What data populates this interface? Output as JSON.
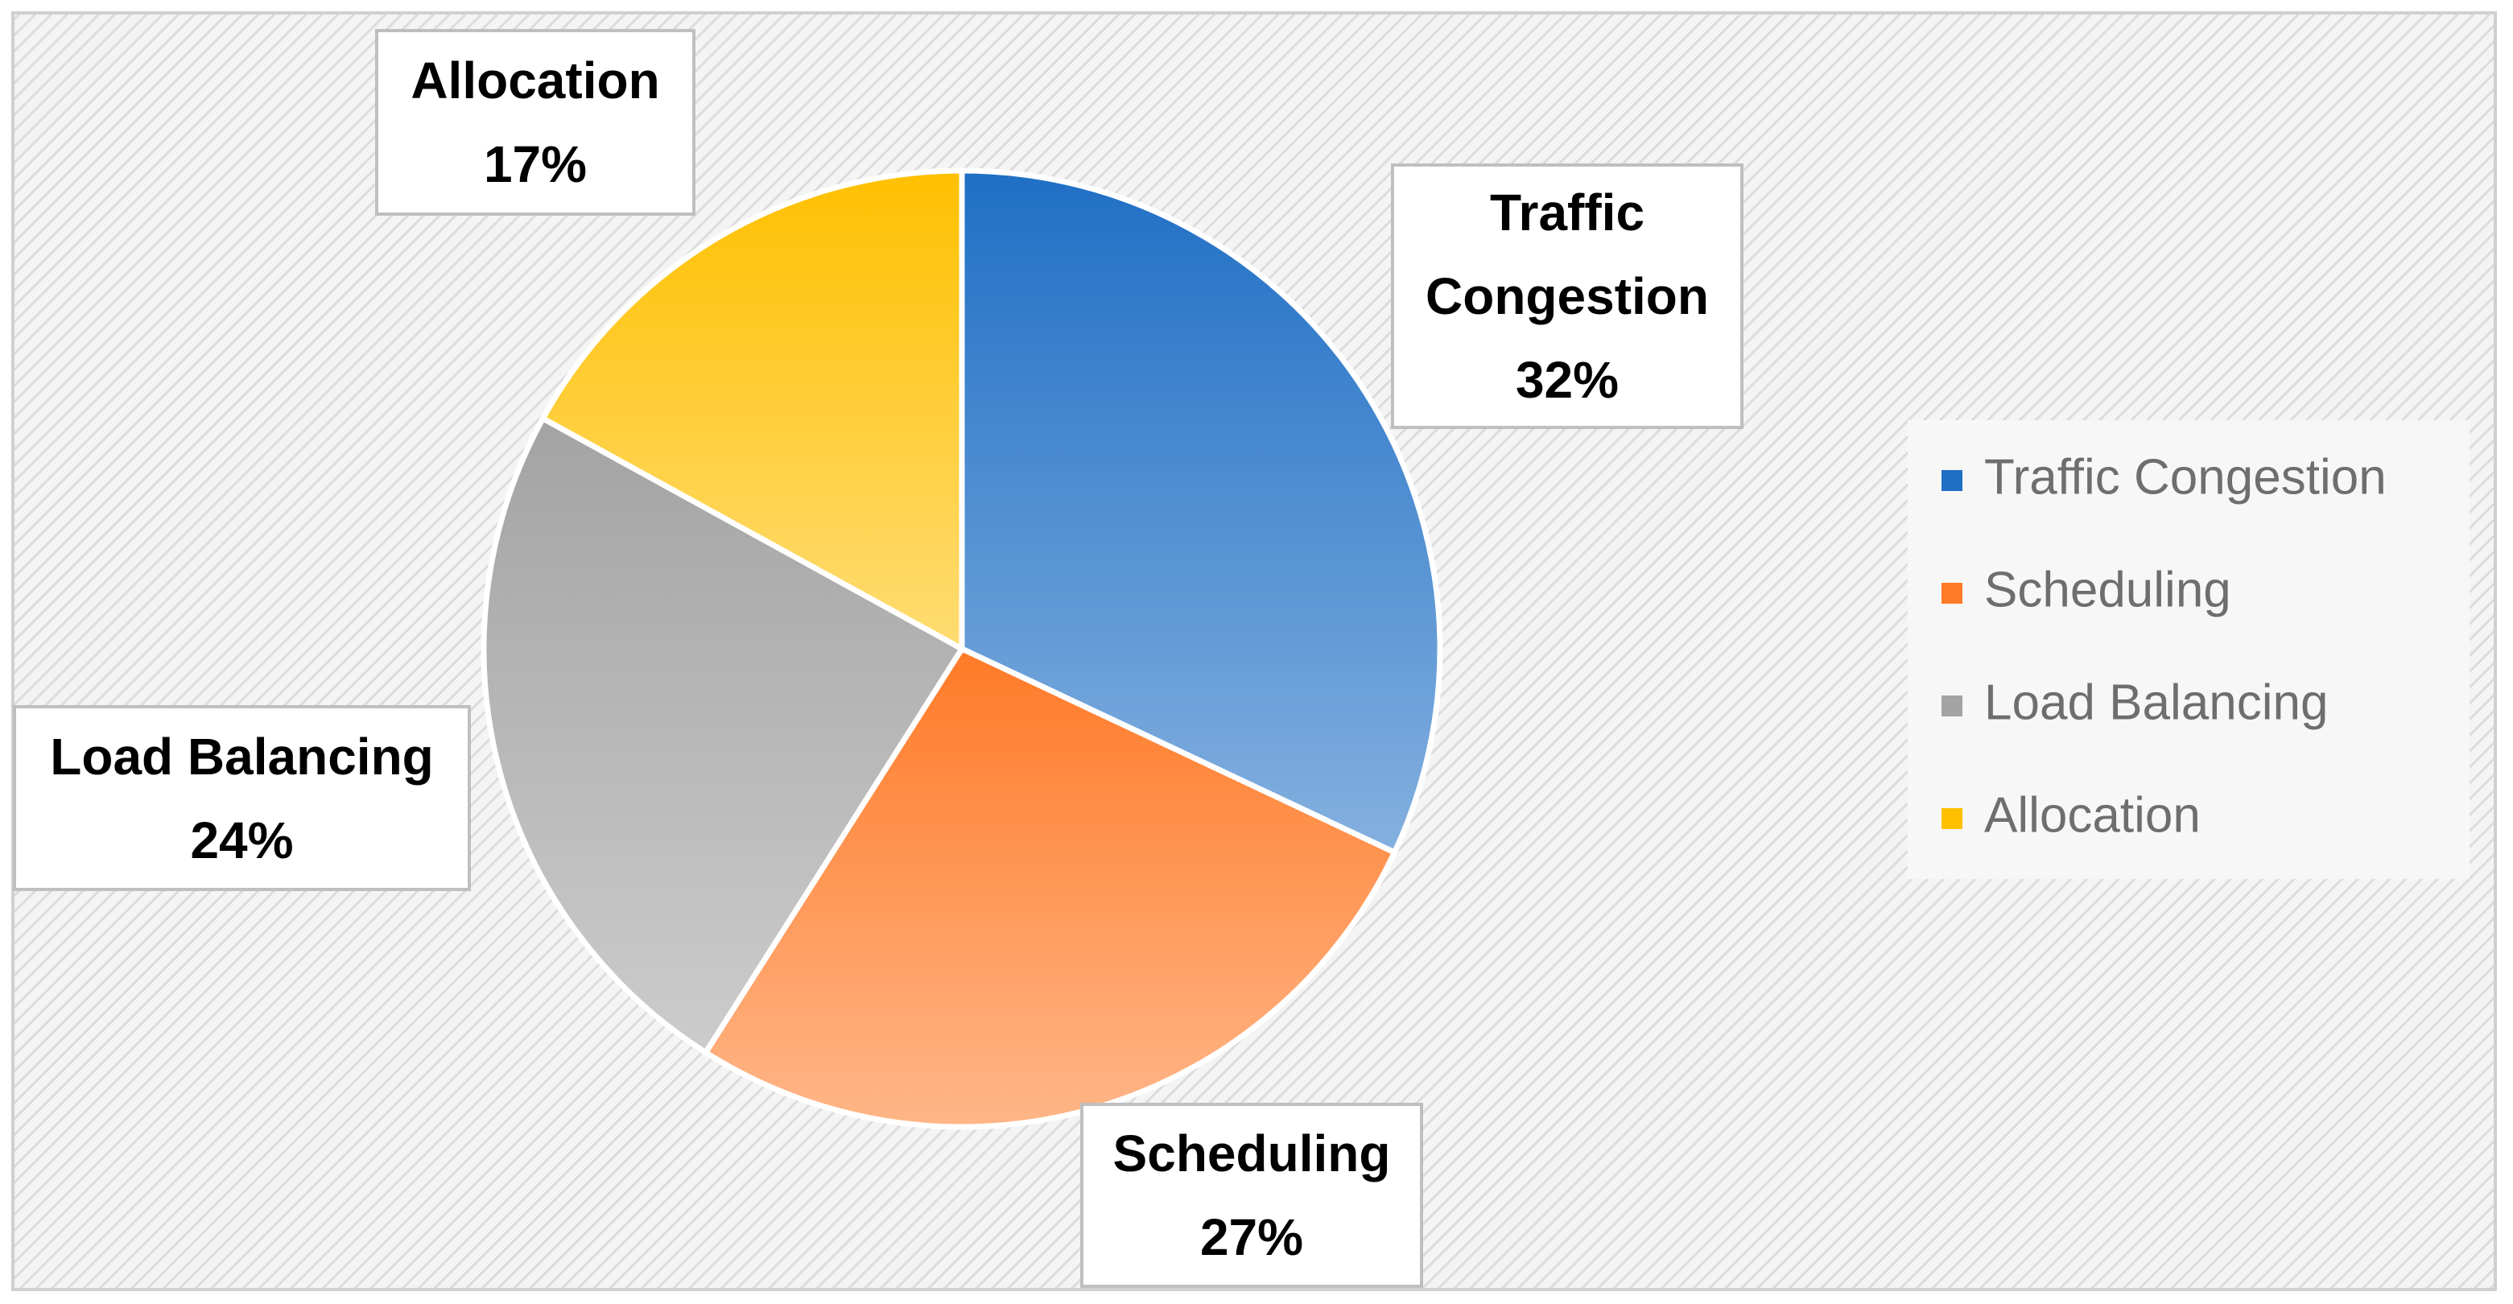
{
  "chart_data": {
    "type": "pie",
    "categories": [
      "Traffic Congestion",
      "Scheduling",
      "Load Balancing",
      "Allocation"
    ],
    "values": [
      32,
      27,
      24,
      17
    ],
    "value_labels": [
      "32%",
      "27%",
      "24%",
      "17%"
    ],
    "colors": [
      "#1f6fc5",
      "#ff7a27",
      "#a3a3a3",
      "#ffc000"
    ],
    "legend": "right"
  }
}
